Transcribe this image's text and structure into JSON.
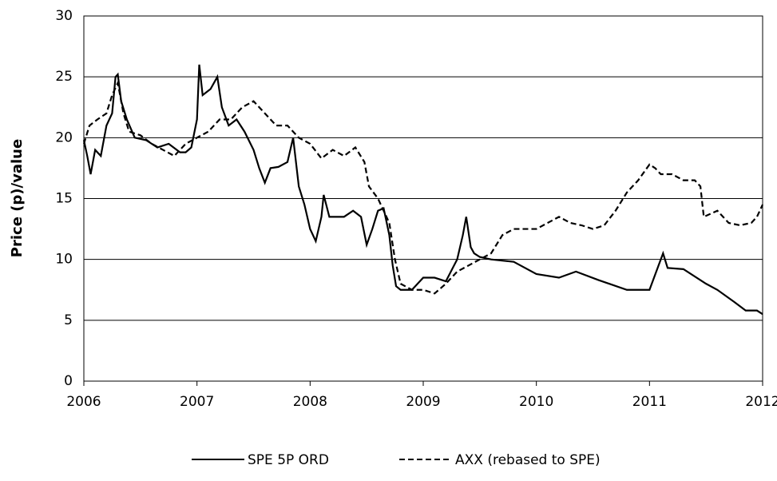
{
  "chart_data": {
    "type": "line",
    "y_label": "Price (p)/value",
    "xlim": [
      2006,
      2012
    ],
    "xticks": [
      2006,
      2007,
      2008,
      2009,
      2010,
      2011,
      2012
    ],
    "ylim": [
      0,
      30
    ],
    "yticks": [
      0,
      5,
      10,
      15,
      20,
      25,
      30
    ],
    "grid": true,
    "legend": "bottom",
    "series": [
      {
        "name": "SPE 5P ORD",
        "color": "#000000",
        "line_style": "solid",
        "x": [
          2006.0,
          2006.03,
          2006.06,
          2006.1,
          2006.15,
          2006.2,
          2006.25,
          2006.28,
          2006.3,
          2006.33,
          2006.38,
          2006.45,
          2006.55,
          2006.65,
          2006.75,
          2006.85,
          2006.9,
          2006.95,
          2007.0,
          2007.02,
          2007.05,
          2007.12,
          2007.18,
          2007.22,
          2007.28,
          2007.35,
          2007.42,
          2007.5,
          2007.55,
          2007.6,
          2007.65,
          2007.72,
          2007.8,
          2007.85,
          2007.9,
          2007.95,
          2008.0,
          2008.05,
          2008.1,
          2008.12,
          2008.17,
          2008.3,
          2008.38,
          2008.45,
          2008.5,
          2008.55,
          2008.6,
          2008.65,
          2008.7,
          2008.73,
          2008.76,
          2008.8,
          2008.9,
          2009.0,
          2009.1,
          2009.2,
          2009.3,
          2009.35,
          2009.38,
          2009.42,
          2009.45,
          2009.5,
          2009.6,
          2009.8,
          2010.0,
          2010.2,
          2010.35,
          2010.55,
          2010.8,
          2011.0,
          2011.08,
          2011.12,
          2011.16,
          2011.3,
          2011.5,
          2011.6,
          2011.75,
          2011.85,
          2011.95,
          2012.0
        ],
        "values": [
          19.8,
          18.5,
          17,
          19,
          18.5,
          21,
          22,
          25,
          25.2,
          23,
          21.5,
          20,
          19.8,
          19.2,
          19.5,
          18.8,
          18.8,
          19.2,
          21.5,
          26,
          23.5,
          24,
          25,
          22.5,
          21,
          21.5,
          20.5,
          19,
          17.5,
          16.3,
          17.5,
          17.6,
          18,
          20,
          16,
          14.5,
          12.5,
          11.5,
          13.5,
          15.3,
          13.5,
          13.5,
          14,
          13.5,
          11.2,
          12.5,
          14,
          14.2,
          12,
          9.5,
          7.8,
          7.5,
          7.5,
          8.5,
          8.5,
          8.2,
          10,
          12,
          13.5,
          11,
          10.5,
          10.2,
          10,
          9.8,
          8.8,
          8.5,
          9,
          8.3,
          7.5,
          7.5,
          9.5,
          10.5,
          9.3,
          9.2,
          8,
          7.5,
          6.5,
          5.8,
          5.8,
          5.5
        ]
      },
      {
        "name": "AXX (rebased to SPE)",
        "color": "#000000",
        "line_style": "dashed",
        "x": [
          2006.0,
          2006.05,
          2006.12,
          2006.2,
          2006.25,
          2006.3,
          2006.35,
          2006.4,
          2006.5,
          2006.6,
          2006.7,
          2006.8,
          2006.9,
          2007.0,
          2007.1,
          2007.15,
          2007.2,
          2007.3,
          2007.4,
          2007.5,
          2007.6,
          2007.7,
          2007.8,
          2007.9,
          2008.0,
          2008.1,
          2008.2,
          2008.3,
          2008.4,
          2008.48,
          2008.52,
          2008.6,
          2008.7,
          2008.75,
          2008.8,
          2008.9,
          2009.0,
          2009.1,
          2009.2,
          2009.3,
          2009.4,
          2009.5,
          2009.6,
          2009.7,
          2009.8,
          2009.9,
          2010.0,
          2010.1,
          2010.2,
          2010.3,
          2010.4,
          2010.5,
          2010.6,
          2010.7,
          2010.8,
          2010.9,
          2011.0,
          2011.05,
          2011.1,
          2011.2,
          2011.3,
          2011.4,
          2011.45,
          2011.48,
          2011.6,
          2011.7,
          2011.8,
          2011.9,
          2011.95,
          2012.0
        ],
        "values": [
          19.5,
          21,
          21.5,
          22,
          23.5,
          24.5,
          22,
          20.5,
          20.2,
          19.5,
          19,
          18.5,
          19.5,
          20,
          20.5,
          21,
          21.5,
          21.5,
          22.5,
          23,
          22,
          21,
          21,
          20,
          19.5,
          18.3,
          19,
          18.5,
          19.2,
          18,
          16,
          15,
          13,
          10,
          8,
          7.5,
          7.5,
          7.2,
          8,
          9,
          9.5,
          10,
          10.5,
          12,
          12.5,
          12.5,
          12.5,
          13,
          13.5,
          13,
          12.8,
          12.5,
          12.8,
          14,
          15.5,
          16.5,
          17.8,
          17.5,
          17,
          17,
          16.5,
          16.5,
          16,
          13.5,
          14,
          13,
          12.8,
          13,
          13.5,
          14.5
        ]
      }
    ]
  }
}
